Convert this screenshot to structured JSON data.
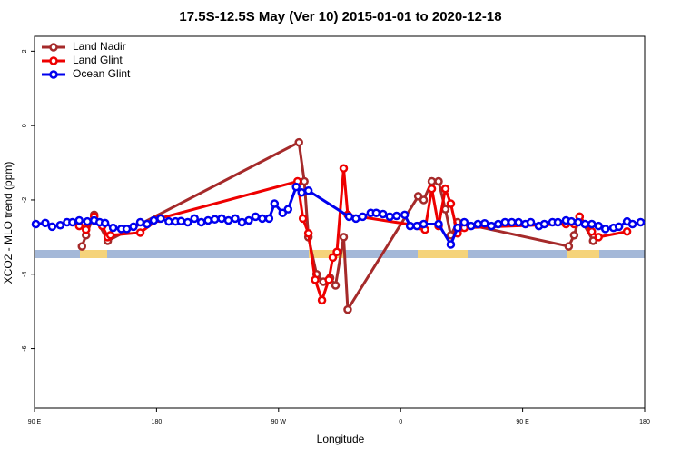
{
  "chart_data": {
    "type": "line",
    "title": "17.5S-12.5S May (Ver 10)   2015-01-01 to 2020-12-18",
    "xlabel": "Longitude",
    "ylabel": "XCO2 - MLO trend (ppm)",
    "xlim": [
      90,
      540
    ],
    "ylim": [
      -7.6,
      2.4
    ],
    "xticks": [
      {
        "value": 90,
        "label": "90 E"
      },
      {
        "value": 180,
        "label": "180"
      },
      {
        "value": 270,
        "label": "90 W"
      },
      {
        "value": 360,
        "label": "0"
      },
      {
        "value": 450,
        "label": "90 E"
      },
      {
        "value": 540,
        "label": "180"
      }
    ],
    "yticks": [
      -6,
      -4,
      -2,
      0,
      2
    ],
    "legend": "top-left",
    "series": [
      {
        "name": "Land Nadir",
        "color": "#a52a2a",
        "x": [
          125,
          128,
          134,
          144,
          285,
          289,
          292,
          298,
          303,
          308,
          312,
          318,
          321,
          373,
          377,
          383,
          388,
          393,
          397,
          402,
          484,
          488,
          492,
          502
        ],
        "values": [
          -3.25,
          -2.95,
          -2.4,
          -3.1,
          -0.45,
          -1.5,
          -3.0,
          -4.0,
          -4.2,
          -4.1,
          -4.3,
          -3.0,
          -4.95,
          -1.9,
          -2.0,
          -1.5,
          -1.5,
          -2.25,
          -2.95,
          -2.6,
          -3.25,
          -2.95,
          -2.45,
          -3.1
        ]
      },
      {
        "name": "Land Glint",
        "color": "#ee0000",
        "x": [
          123,
          128,
          134,
          140,
          144,
          146,
          168,
          182,
          284,
          288,
          292,
          297,
          302,
          307,
          310,
          313,
          318,
          321,
          374,
          378,
          383,
          388,
          393,
          397,
          402,
          407,
          482,
          488,
          492,
          501,
          506,
          527
        ],
        "values": [
          -2.7,
          -2.8,
          -2.45,
          -2.7,
          -3.0,
          -2.95,
          -2.88,
          -2.5,
          -1.5,
          -2.5,
          -2.9,
          -4.15,
          -4.7,
          -4.15,
          -3.55,
          -3.4,
          -1.15,
          -2.4,
          -2.7,
          -2.8,
          -1.7,
          -2.7,
          -1.7,
          -2.1,
          -2.9,
          -2.75,
          -2.65,
          -2.65,
          -2.45,
          -2.85,
          -3.0,
          -2.85
        ]
      },
      {
        "name": "Ocean Glint",
        "color": "#0000ee",
        "x": [
          91,
          98,
          103,
          109,
          114,
          118,
          123,
          129,
          134,
          138,
          142,
          148,
          154,
          158,
          163,
          168,
          173,
          178,
          183,
          189,
          194,
          198,
          203,
          208,
          213,
          218,
          223,
          228,
          233,
          238,
          243,
          248,
          253,
          258,
          263,
          267,
          273,
          277,
          283,
          287,
          292,
          322,
          327,
          332,
          338,
          342,
          347,
          352,
          357,
          363,
          367,
          372,
          377,
          388,
          397,
          402,
          407,
          412,
          417,
          422,
          427,
          432,
          437,
          442,
          447,
          452,
          456,
          462,
          466,
          472,
          476,
          482,
          486,
          491,
          496,
          501,
          506,
          511,
          517,
          521,
          527,
          531,
          537
        ],
        "values": [
          -2.65,
          -2.62,
          -2.72,
          -2.68,
          -2.6,
          -2.6,
          -2.55,
          -2.58,
          -2.55,
          -2.6,
          -2.62,
          -2.75,
          -2.78,
          -2.78,
          -2.72,
          -2.6,
          -2.65,
          -2.55,
          -2.5,
          -2.58,
          -2.58,
          -2.57,
          -2.6,
          -2.5,
          -2.6,
          -2.55,
          -2.52,
          -2.5,
          -2.55,
          -2.5,
          -2.6,
          -2.55,
          -2.45,
          -2.5,
          -2.5,
          -2.1,
          -2.35,
          -2.25,
          -1.65,
          -1.8,
          -1.75,
          -2.45,
          -2.5,
          -2.45,
          -2.35,
          -2.35,
          -2.38,
          -2.45,
          -2.43,
          -2.4,
          -2.7,
          -2.7,
          -2.65,
          -2.65,
          -3.2,
          -2.75,
          -2.6,
          -2.7,
          -2.65,
          -2.63,
          -2.7,
          -2.65,
          -2.6,
          -2.6,
          -2.6,
          -2.65,
          -2.6,
          -2.7,
          -2.65,
          -2.6,
          -2.6,
          -2.55,
          -2.58,
          -2.6,
          -2.65,
          -2.65,
          -2.7,
          -2.78,
          -2.75,
          -2.72,
          -2.58,
          -2.65,
          -2.6
        ]
      }
    ]
  }
}
